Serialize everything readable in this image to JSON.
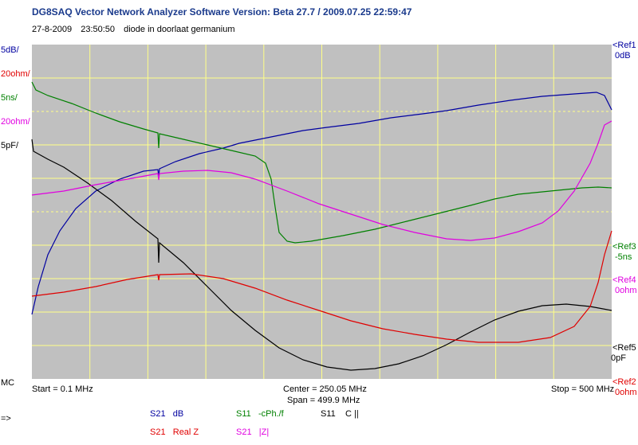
{
  "app_title": "DG8SAQ Vector Network Analyzer Software   Version:  Beta 27.7 / 2009.07.25 22:59:47",
  "meta": {
    "date": "27-8-2009",
    "time": "23:50:50",
    "note": "diode in doorlaat  germanium"
  },
  "colors": {
    "plot_bg": "#c0c0c0",
    "grid": "#ffff88",
    "s21_db": "#0000a0",
    "s11_phase": "#008000",
    "s11_c": "#000000",
    "s21_real": "#e00000",
    "s21_absz": "#e000e0"
  },
  "left_scale": {
    "s21_db": "5dB/",
    "s21_real": "20ohm/",
    "s11_phase": "5ns/",
    "s21_absz": "20ohm/",
    "s11_c": "5pF/",
    "marker": "MC"
  },
  "right_refs": {
    "ref1": {
      "label": "<Ref1",
      "value": "0dB"
    },
    "ref3": {
      "label": "<Ref3",
      "value": "-5ns"
    },
    "ref4": {
      "label": "<Ref4",
      "value": "0ohm"
    },
    "ref5": {
      "label": "<Ref5",
      "value": "0pF"
    },
    "ref2": {
      "label": "<Ref2",
      "value": "0ohm"
    }
  },
  "freq": {
    "start": "Start = 0.1 MHz",
    "center": "Center = 250.05 MHz",
    "span": "Span = 499.9 MHz",
    "stop": "Stop = 500 MHz"
  },
  "legend": {
    "arrow": "=>",
    "items": [
      {
        "param": "S21",
        "unit": "dB",
        "color": "#0000a0"
      },
      {
        "param": "S11",
        "unit": "-cPh./f",
        "color": "#008000"
      },
      {
        "param": "S11",
        "unit": "C ||",
        "color": "#000000"
      },
      {
        "param": "S21",
        "unit": "Real Z",
        "color": "#e00000"
      },
      {
        "param": "S21",
        "unit": "|Z|",
        "color": "#e000e0"
      }
    ]
  }
}
